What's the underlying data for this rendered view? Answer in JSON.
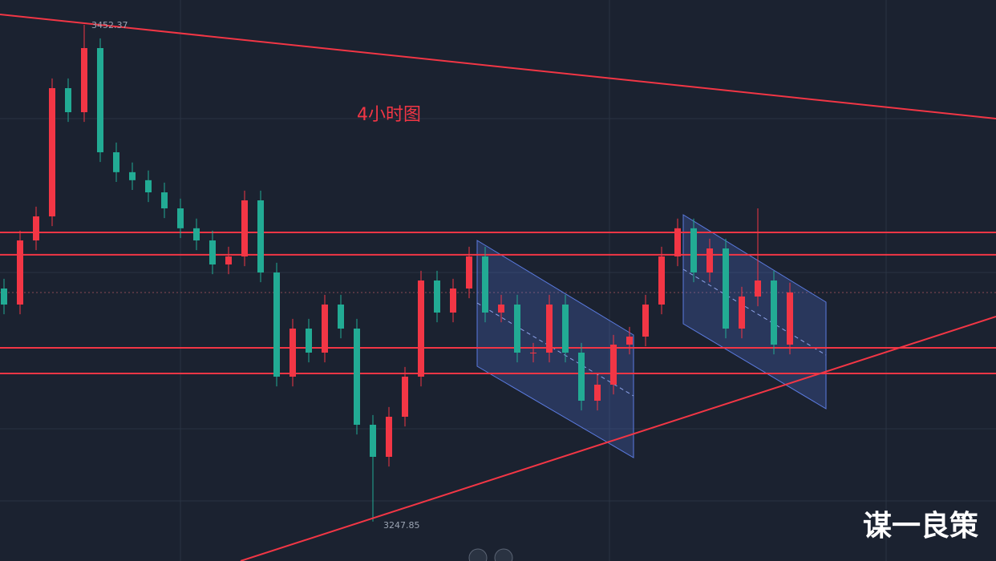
{
  "chart_data": {
    "type": "candlestick",
    "title": "4小时图",
    "ylim": [
      3231.6,
      3462.6
    ],
    "up_color": "#f23645",
    "down_color": "#22ab94",
    "level_color": "#f23645",
    "levels": [
      3366.9,
      3357.7,
      3319.4,
      3308.8
    ],
    "series": {
      "open": [
        3343.8,
        3337.2,
        3363.6,
        3373.5,
        3426.3,
        3416.4,
        3442.8,
        3399.9,
        3391.7,
        3388.4,
        3383.4,
        3376.8,
        3368.6,
        3363.6,
        3353.7,
        3357.0,
        3380.1,
        3350.4,
        3307.5,
        3327.3,
        3317.4,
        3337.2,
        3327.3,
        3287.7,
        3274.5,
        3291.0,
        3307.5,
        3347.1,
        3333.9,
        3343.8,
        3357.0,
        3333.9,
        3337.2,
        3317.4,
        3317.4,
        3337.2,
        3317.4,
        3297.6,
        3304.2,
        3320.7,
        3324.0,
        3337.2,
        3357.0,
        3368.6,
        3350.4,
        3360.3,
        3327.3,
        3340.5,
        3347.1,
        3320.7
      ],
      "high": [
        3347.8,
        3367.6,
        3377.5,
        3430.3,
        3430.3,
        3452.37,
        3446.8,
        3403.9,
        3395.7,
        3392.4,
        3387.4,
        3380.8,
        3372.6,
        3367.6,
        3361.0,
        3384.1,
        3384.1,
        3354.4,
        3331.3,
        3331.3,
        3341.2,
        3341.2,
        3331.3,
        3291.7,
        3295.0,
        3311.5,
        3351.1,
        3351.1,
        3347.8,
        3361.0,
        3361.0,
        3341.2,
        3341.2,
        3321.4,
        3341.2,
        3341.2,
        3321.4,
        3308.2,
        3324.7,
        3328.0,
        3341.2,
        3361.0,
        3372.6,
        3372.6,
        3364.3,
        3364.3,
        3344.5,
        3376.8,
        3351.1,
        3346.2
      ],
      "low": [
        3333.2,
        3333.2,
        3359.6,
        3369.5,
        3412.4,
        3412.4,
        3395.9,
        3387.7,
        3384.4,
        3379.4,
        3372.8,
        3364.6,
        3359.6,
        3349.7,
        3349.7,
        3353.0,
        3346.4,
        3303.5,
        3303.5,
        3313.4,
        3313.4,
        3323.3,
        3283.7,
        3247.85,
        3270.5,
        3287.0,
        3303.5,
        3329.9,
        3329.9,
        3339.8,
        3329.9,
        3329.9,
        3313.4,
        3313.4,
        3313.4,
        3313.4,
        3293.6,
        3293.6,
        3300.2,
        3316.7,
        3320.0,
        3333.2,
        3353.0,
        3346.4,
        3346.4,
        3323.3,
        3323.3,
        3336.5,
        3316.7,
        3316.7
      ],
      "close": [
        3337.2,
        3363.6,
        3373.5,
        3426.3,
        3416.4,
        3442.8,
        3399.9,
        3391.7,
        3388.4,
        3383.4,
        3376.8,
        3368.6,
        3363.6,
        3353.7,
        3357.0,
        3380.1,
        3350.4,
        3307.5,
        3327.3,
        3317.4,
        3337.2,
        3327.3,
        3287.7,
        3274.5,
        3291.0,
        3307.5,
        3347.1,
        3333.9,
        3343.8,
        3357.0,
        3333.9,
        3337.2,
        3317.4,
        3317.4,
        3337.2,
        3317.4,
        3297.6,
        3304.2,
        3320.7,
        3324.0,
        3337.2,
        3357.0,
        3368.6,
        3350.4,
        3360.3,
        3327.3,
        3340.5,
        3347.1,
        3320.7,
        3342.2
      ]
    }
  },
  "watermark": "谋一良策"
}
